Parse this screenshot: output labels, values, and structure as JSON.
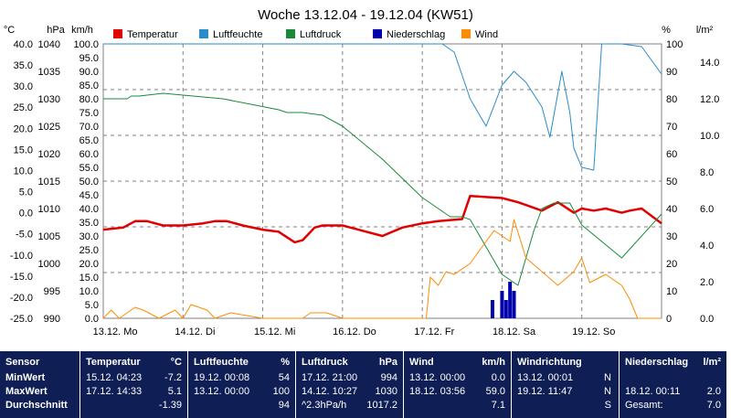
{
  "chart_data": {
    "type": "line",
    "title": "Woche 13.12.04 - 19.12.04 (KW51)",
    "left_axes": [
      {
        "unit": "°C",
        "min": -25.0,
        "max": 40.0,
        "ticks": [
          "40.0",
          "35.0",
          "30.0",
          "25.0",
          "20.0",
          "15.0",
          "10.0",
          "5.0",
          "0.0",
          "-5.0",
          "-10.0",
          "-15.0",
          "-20.0",
          "-25.0"
        ]
      },
      {
        "unit": "hPa",
        "min": 990,
        "max": 1040,
        "ticks": [
          "1040",
          "1035",
          "1030",
          "1025",
          "1020",
          "1015",
          "1010",
          "1005",
          "1000",
          "995",
          "990"
        ]
      },
      {
        "unit": "km/h",
        "min": 0.0,
        "max": 100.0,
        "ticks": [
          "100.0",
          "95.0",
          "90.0",
          "85.0",
          "80.0",
          "75.0",
          "70.0",
          "65.0",
          "60.0",
          "55.0",
          "50.0",
          "45.0",
          "40.0",
          "35.0",
          "30.0",
          "25.0",
          "20.0",
          "15.0",
          "10.0",
          "5.0",
          "0.0"
        ]
      }
    ],
    "right_axes": [
      {
        "unit": "%",
        "min": 0,
        "max": 100,
        "ticks": [
          "100",
          "90",
          "80",
          "70",
          "60",
          "50",
          "40",
          "30",
          "20",
          "10",
          "0"
        ]
      },
      {
        "unit": "l/m²",
        "min": 0.0,
        "max": 15.0,
        "ticks": [
          "14.0",
          "12.0",
          "10.0",
          "8.0",
          "6.0",
          "4.0",
          "2.0",
          "0.0"
        ]
      }
    ],
    "x_axis": {
      "min": 0,
      "max": 7,
      "unit": "days since 13.12. 00:00",
      "ticks": [
        "13.12. Mo",
        "14.12. Di",
        "15.12. Mi",
        "16.12. Do",
        "17.12. Fr",
        "18.12. Sa",
        "19.12. So"
      ]
    },
    "grid": true,
    "legend_position": "top",
    "series": [
      {
        "name": "Temperatur",
        "color": "#e00000",
        "axis": "°C",
        "x": [
          0.0,
          0.25,
          0.4,
          0.55,
          0.75,
          1.0,
          1.25,
          1.4,
          1.55,
          1.75,
          2.0,
          2.2,
          2.4,
          2.5,
          2.65,
          2.75,
          3.0,
          3.2,
          3.5,
          3.75,
          4.0,
          4.2,
          4.5,
          4.6,
          5.0,
          5.2,
          5.5,
          5.7,
          5.9,
          6.0,
          6.15,
          6.3,
          6.5,
          6.6,
          6.75,
          7.0
        ],
        "y": [
          -4.0,
          -3.5,
          -2.0,
          -2.0,
          -3.0,
          -3.0,
          -2.5,
          -2.0,
          -2.0,
          -3.0,
          -4.0,
          -4.5,
          -7.0,
          -6.5,
          -3.5,
          -3.0,
          -3.0,
          -4.0,
          -5.5,
          -3.5,
          -2.5,
          -2.0,
          -1.5,
          4.0,
          3.5,
          2.5,
          0.5,
          2.5,
          0.0,
          1.0,
          0.5,
          1.0,
          0.0,
          0.5,
          1.0,
          -2.5
        ]
      },
      {
        "name": "Luftfeuchte",
        "color": "#2a8cc8",
        "axis": "%",
        "x": [
          0.0,
          2.0,
          3.0,
          4.0,
          4.25,
          4.4,
          4.6,
          4.7,
          4.8,
          5.0,
          5.15,
          5.3,
          5.5,
          5.6,
          5.75,
          5.85,
          5.9,
          6.0,
          6.15,
          6.25,
          6.35,
          6.5,
          6.75,
          7.0
        ],
        "y": [
          100,
          100,
          100,
          100,
          100,
          97,
          80,
          75,
          70,
          85,
          90,
          86,
          77,
          66,
          90,
          75,
          62,
          55,
          54,
          100,
          100,
          100,
          99,
          89
        ]
      },
      {
        "name": "Luftdruck",
        "color": "#1a8a3a",
        "axis": "hPa",
        "x": [
          0.0,
          0.3,
          0.35,
          0.45,
          0.75,
          1.5,
          2.2,
          2.3,
          2.5,
          2.75,
          3.0,
          3.5,
          4.0,
          4.2,
          4.35,
          4.5,
          4.6,
          5.0,
          5.2,
          5.4,
          5.5,
          5.65,
          5.85,
          6.0,
          6.5,
          7.0
        ],
        "y": [
          1030.0,
          1030.0,
          1030.5,
          1030.5,
          1031.0,
          1030.0,
          1028.0,
          1027.5,
          1027.5,
          1027.0,
          1025.0,
          1019.0,
          1012.0,
          1010.0,
          1008.5,
          1008.5,
          1008.0,
          998.0,
          996.0,
          1006.0,
          1010.0,
          1011.0,
          1011.0,
          1007.0,
          1001.0,
          1009.0
        ]
      },
      {
        "name": "Niederschlag",
        "color": "#0000aa",
        "axis": "l/m²",
        "kind": "bar",
        "x": [
          4.88,
          5.0,
          5.05,
          5.1,
          5.15
        ],
        "y": [
          1.0,
          1.5,
          1.0,
          2.0,
          1.5
        ]
      },
      {
        "name": "Wind",
        "color": "#ff8c00",
        "axis": "km/h",
        "x": [
          0.0,
          0.1,
          0.2,
          0.4,
          0.5,
          0.7,
          0.9,
          1.0,
          1.1,
          1.3,
          1.4,
          1.6,
          2.0,
          2.5,
          2.6,
          2.8,
          3.0,
          4.05,
          4.1,
          4.2,
          4.3,
          4.4,
          4.6,
          4.9,
          5.0,
          5.1,
          5.15,
          5.3,
          5.5,
          5.7,
          5.9,
          6.0,
          6.1,
          6.3,
          6.5,
          6.6,
          6.7,
          7.0
        ],
        "y": [
          0,
          3,
          0,
          4,
          3,
          0,
          3,
          0,
          5,
          3,
          0,
          2,
          0,
          0,
          2,
          2,
          0,
          0,
          15,
          12,
          17,
          16,
          20,
          32,
          30,
          28,
          36,
          22,
          17,
          12,
          17,
          22,
          13,
          16,
          12,
          7,
          0,
          0
        ]
      }
    ]
  },
  "stats": {
    "headers": {
      "sensor": "Sensor",
      "temp": "Temperatur",
      "temp_unit": "°C",
      "hum": "Luftfeuchte",
      "hum_unit": "%",
      "press": "Luftdruck",
      "press_unit": "hPa",
      "wind": "Wind",
      "wind_unit": "km/h",
      "dir": "Windrichtung",
      "rain": "Niederschlag",
      "rain_unit": "l/m²"
    },
    "labels": {
      "min": "MinWert",
      "max": "MaxWert",
      "avg": "Durchschnitt"
    },
    "temp": {
      "min_time": "15.12.  04:23",
      "min": "-7.2",
      "max_time": "17.12.  14:33",
      "max": "5.1",
      "avg": "-1.39"
    },
    "hum": {
      "min_time": "19.12.  00:08",
      "min": "54",
      "max_time": "13.12.  00:00",
      "max": "100",
      "avg": "94"
    },
    "press": {
      "min_time": "17.12.  21:00",
      "min": "994",
      "max_time": "14.12.  10:27",
      "max": "1030",
      "trend": "^2.3hPa/h",
      "avg": "1017.2"
    },
    "wind": {
      "min_time": "13.12.  00:00",
      "min": "0.0",
      "max_time": "18.12.  03:56",
      "max": "59.0",
      "avg": "7.1"
    },
    "dir": {
      "min_time": "13.12.  00:01",
      "min": "N",
      "max_time": "19.12.  11:47",
      "max": "N",
      "avg": "S"
    },
    "rain": {
      "max_time": "18.12.  00:11",
      "max": "2.0",
      "total_label": "Gesamt:",
      "total": "7.0"
    }
  }
}
